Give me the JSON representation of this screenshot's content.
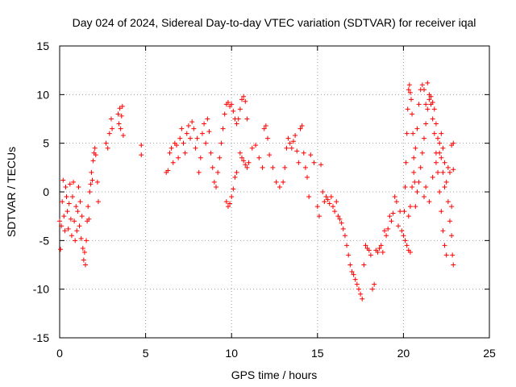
{
  "chart_data": {
    "type": "scatter",
    "title": "Day 024 of 2024, Sidereal Day-to-day VTEC variation (SDTVAR) for receiver iqal",
    "xlabel": "GPS time / hours",
    "ylabel": "SDTVAR / TECUs",
    "xlim": [
      0,
      25
    ],
    "ylim": [
      -15,
      15
    ],
    "x_ticks": [
      0,
      5,
      10,
      15,
      20,
      25
    ],
    "y_ticks": [
      -15,
      -10,
      -5,
      0,
      5,
      10,
      15
    ],
    "x_tick_labels": [
      "0",
      "5",
      "10",
      "15",
      "20",
      "25"
    ],
    "y_tick_labels": [
      "-15",
      "-10",
      "-5",
      "0",
      "5",
      "10",
      "15"
    ],
    "grid": true,
    "marker": "+",
    "color": "#ff0000",
    "series": [
      {
        "name": "SDTVAR",
        "points": [
          [
            0.0,
            -3.0
          ],
          [
            0.05,
            -5.9
          ],
          [
            0.1,
            -3.5
          ],
          [
            0.15,
            -1.0
          ],
          [
            0.2,
            1.2
          ],
          [
            0.25,
            -2.5
          ],
          [
            0.3,
            -4.0
          ],
          [
            0.35,
            0.5
          ],
          [
            0.4,
            -0.5
          ],
          [
            0.45,
            -2.0
          ],
          [
            0.5,
            -3.8
          ],
          [
            0.55,
            -1.2
          ],
          [
            0.6,
            0.8
          ],
          [
            0.65,
            -2.8
          ],
          [
            0.7,
            -4.5
          ],
          [
            0.75,
            -0.5
          ],
          [
            0.8,
            1.0
          ],
          [
            0.85,
            -3.0
          ],
          [
            0.9,
            -5.0
          ],
          [
            0.95,
            -1.5
          ],
          [
            1.0,
            -4.0
          ],
          [
            1.05,
            -2.0
          ],
          [
            1.1,
            0.5
          ],
          [
            1.15,
            -3.5
          ],
          [
            1.2,
            -1.0
          ],
          [
            1.25,
            -4.8
          ],
          [
            1.3,
            -2.5
          ],
          [
            1.35,
            -5.8
          ],
          [
            1.4,
            -7.0
          ],
          [
            1.45,
            -6.2
          ],
          [
            1.5,
            -7.5
          ],
          [
            1.55,
            -5.0
          ],
          [
            1.6,
            -3.0
          ],
          [
            1.65,
            -1.5
          ],
          [
            1.7,
            -2.8
          ],
          [
            1.75,
            0.0
          ],
          [
            1.8,
            0.8
          ],
          [
            1.85,
            2.0
          ],
          [
            1.9,
            1.2
          ],
          [
            1.95,
            3.2
          ],
          [
            2.0,
            4.0
          ],
          [
            2.05,
            4.5
          ],
          [
            2.1,
            3.8
          ],
          [
            2.2,
            1.0
          ],
          [
            2.25,
            -1.0
          ],
          [
            2.7,
            5.0
          ],
          [
            2.8,
            4.5
          ],
          [
            2.9,
            6.0
          ],
          [
            3.0,
            7.5
          ],
          [
            3.05,
            6.5
          ],
          [
            3.4,
            8.0
          ],
          [
            3.45,
            7.0
          ],
          [
            3.5,
            8.6
          ],
          [
            3.55,
            6.5
          ],
          [
            3.6,
            7.8
          ],
          [
            3.65,
            8.8
          ],
          [
            3.7,
            5.8
          ],
          [
            4.75,
            4.8
          ],
          [
            4.75,
            3.8
          ],
          [
            6.2,
            2.0
          ],
          [
            6.3,
            2.2
          ],
          [
            6.4,
            4.0
          ],
          [
            6.5,
            4.5
          ],
          [
            6.6,
            3.0
          ],
          [
            6.7,
            5.0
          ],
          [
            6.8,
            4.8
          ],
          [
            6.9,
            3.5
          ],
          [
            7.0,
            5.5
          ],
          [
            7.1,
            6.5
          ],
          [
            7.2,
            5.0
          ],
          [
            7.3,
            4.0
          ],
          [
            7.4,
            6.0
          ],
          [
            7.5,
            6.8
          ],
          [
            7.6,
            5.5
          ],
          [
            7.7,
            7.2
          ],
          [
            7.8,
            6.5
          ],
          [
            7.9,
            4.5
          ],
          [
            8.0,
            5.5
          ],
          [
            8.1,
            2.0
          ],
          [
            8.2,
            3.5
          ],
          [
            8.3,
            6.0
          ],
          [
            8.4,
            7.0
          ],
          [
            8.5,
            5.0
          ],
          [
            8.6,
            7.5
          ],
          [
            8.7,
            6.2
          ],
          [
            8.8,
            4.0
          ],
          [
            8.9,
            2.5
          ],
          [
            9.0,
            1.0
          ],
          [
            9.1,
            0.5
          ],
          [
            9.2,
            2.0
          ],
          [
            9.3,
            3.5
          ],
          [
            9.4,
            5.0
          ],
          [
            9.5,
            6.5
          ],
          [
            9.6,
            8.0
          ],
          [
            9.7,
            9.0
          ],
          [
            9.8,
            9.2
          ],
          [
            9.9,
            8.8
          ],
          [
            10.0,
            9.0
          ],
          [
            10.1,
            8.3
          ],
          [
            10.2,
            7.5
          ],
          [
            10.3,
            7.0
          ],
          [
            10.4,
            7.5
          ],
          [
            10.5,
            8.5
          ],
          [
            10.6,
            9.5
          ],
          [
            10.7,
            9.8
          ],
          [
            10.8,
            9.3
          ],
          [
            10.9,
            7.5
          ],
          [
            9.7,
            -1.0
          ],
          [
            9.8,
            -1.5
          ],
          [
            9.9,
            -1.2
          ],
          [
            10.0,
            -0.5
          ],
          [
            10.1,
            0.3
          ],
          [
            10.2,
            1.5
          ],
          [
            10.3,
            2.0
          ],
          [
            10.5,
            4.0
          ],
          [
            10.6,
            3.5
          ],
          [
            10.7,
            3.2
          ],
          [
            10.8,
            2.8
          ],
          [
            10.9,
            2.5
          ],
          [
            11.0,
            3.0
          ],
          [
            11.2,
            4.5
          ],
          [
            11.4,
            4.8
          ],
          [
            11.6,
            3.5
          ],
          [
            11.8,
            2.5
          ],
          [
            11.9,
            6.5
          ],
          [
            12.0,
            6.8
          ],
          [
            12.1,
            5.5
          ],
          [
            12.2,
            3.8
          ],
          [
            12.4,
            2.5
          ],
          [
            12.6,
            1.0
          ],
          [
            12.8,
            0.5
          ],
          [
            13.0,
            1.0
          ],
          [
            13.1,
            2.5
          ],
          [
            13.2,
            4.5
          ],
          [
            13.3,
            5.5
          ],
          [
            13.4,
            5.0
          ],
          [
            13.5,
            4.5
          ],
          [
            13.6,
            5.2
          ],
          [
            13.7,
            5.8
          ],
          [
            13.8,
            4.2
          ],
          [
            13.9,
            3.0
          ],
          [
            14.0,
            6.5
          ],
          [
            14.1,
            6.8
          ],
          [
            14.2,
            4.0
          ],
          [
            14.3,
            2.5
          ],
          [
            14.4,
            1.5
          ],
          [
            14.5,
            -0.5
          ],
          [
            14.6,
            3.8
          ],
          [
            14.8,
            3.0
          ],
          [
            15.0,
            -1.5
          ],
          [
            15.1,
            -2.5
          ],
          [
            15.2,
            2.8
          ],
          [
            15.3,
            0.0
          ],
          [
            15.4,
            -1.0
          ],
          [
            15.5,
            -0.5
          ],
          [
            15.6,
            -0.8
          ],
          [
            15.7,
            -1.2
          ],
          [
            15.8,
            -0.5
          ],
          [
            15.9,
            -1.5
          ],
          [
            16.0,
            -2.0
          ],
          [
            16.1,
            -1.0
          ],
          [
            16.2,
            -2.5
          ],
          [
            16.3,
            -2.8
          ],
          [
            16.4,
            -3.2
          ],
          [
            16.5,
            -3.8
          ],
          [
            16.6,
            -4.5
          ],
          [
            16.7,
            -5.5
          ],
          [
            16.8,
            -6.5
          ],
          [
            16.9,
            -7.5
          ],
          [
            17.0,
            -8.2
          ],
          [
            17.1,
            -8.5
          ],
          [
            17.2,
            -9.0
          ],
          [
            17.3,
            -9.5
          ],
          [
            17.4,
            -10.0
          ],
          [
            17.5,
            -10.5
          ],
          [
            17.6,
            -11.0
          ],
          [
            17.7,
            -7.5
          ],
          [
            17.8,
            -5.5
          ],
          [
            17.9,
            -5.8
          ],
          [
            18.0,
            -6.0
          ],
          [
            18.1,
            -6.5
          ],
          [
            18.2,
            -10.0
          ],
          [
            18.3,
            -9.5
          ],
          [
            18.4,
            -6.0
          ],
          [
            18.5,
            -6.2
          ],
          [
            18.6,
            -5.8
          ],
          [
            18.7,
            -5.5
          ],
          [
            18.8,
            -6.2
          ],
          [
            18.9,
            -4.0
          ],
          [
            19.0,
            -4.5
          ],
          [
            19.1,
            -3.8
          ],
          [
            19.2,
            -2.5
          ],
          [
            19.3,
            -3.0
          ],
          [
            19.4,
            -2.2
          ],
          [
            19.5,
            -0.5
          ],
          [
            19.6,
            -1.0
          ],
          [
            19.7,
            -3.5
          ],
          [
            19.8,
            -2.0
          ],
          [
            19.9,
            -4.0
          ],
          [
            20.0,
            -4.5
          ],
          [
            20.1,
            -5.0
          ],
          [
            20.2,
            -5.5
          ],
          [
            20.3,
            -6.0
          ],
          [
            20.4,
            -6.2
          ],
          [
            20.05,
            -2.0
          ],
          [
            20.1,
            0.5
          ],
          [
            20.15,
            3.0
          ],
          [
            20.2,
            6.0
          ],
          [
            20.25,
            8.5
          ],
          [
            20.3,
            10.5
          ],
          [
            20.35,
            11.0
          ],
          [
            20.4,
            10.2
          ],
          [
            20.45,
            9.5
          ],
          [
            20.5,
            8.0
          ],
          [
            20.55,
            6.0
          ],
          [
            20.6,
            3.5
          ],
          [
            20.65,
            1.0
          ],
          [
            20.7,
            -1.5
          ],
          [
            20.3,
            -2.5
          ],
          [
            20.4,
            -1.5
          ],
          [
            20.5,
            0.5
          ],
          [
            20.6,
            2.0
          ],
          [
            20.7,
            4.5
          ],
          [
            20.8,
            6.5
          ],
          [
            20.9,
            9.0
          ],
          [
            21.0,
            10.5
          ],
          [
            21.1,
            11.0
          ],
          [
            21.2,
            10.5
          ],
          [
            21.3,
            9.0
          ],
          [
            21.4,
            11.2
          ],
          [
            21.5,
            10.0
          ],
          [
            21.6,
            9.8
          ],
          [
            21.7,
            9.2
          ],
          [
            21.8,
            8.5
          ],
          [
            21.9,
            7.0
          ],
          [
            22.0,
            5.5
          ],
          [
            22.1,
            4.0
          ],
          [
            22.2,
            3.5
          ],
          [
            22.3,
            2.0
          ],
          [
            22.4,
            0.5
          ],
          [
            20.8,
            0.0
          ],
          [
            20.9,
            1.0
          ],
          [
            21.0,
            2.5
          ],
          [
            21.1,
            4.0
          ],
          [
            21.2,
            5.5
          ],
          [
            21.3,
            7.0
          ],
          [
            21.4,
            8.5
          ],
          [
            21.5,
            9.5
          ],
          [
            21.6,
            9.0
          ],
          [
            21.7,
            7.5
          ],
          [
            21.8,
            6.0
          ],
          [
            21.9,
            4.0
          ],
          [
            22.0,
            2.0
          ],
          [
            22.1,
            0.0
          ],
          [
            22.2,
            -2.0
          ],
          [
            22.3,
            -4.0
          ],
          [
            22.4,
            -5.5
          ],
          [
            22.5,
            -6.5
          ],
          [
            21.2,
            -0.5
          ],
          [
            21.3,
            0.5
          ],
          [
            21.5,
            -1.0
          ],
          [
            21.7,
            1.5
          ],
          [
            21.9,
            3.0
          ],
          [
            22.1,
            5.0
          ],
          [
            22.2,
            6.0
          ],
          [
            22.3,
            4.5
          ],
          [
            22.4,
            3.0
          ],
          [
            22.5,
            1.0
          ],
          [
            22.6,
            -1.0
          ],
          [
            22.7,
            -3.0
          ],
          [
            22.8,
            -4.5
          ],
          [
            22.85,
            -6.5
          ],
          [
            22.9,
            -7.5
          ],
          [
            22.6,
            2.5
          ],
          [
            22.7,
            2.0
          ],
          [
            22.8,
            4.8
          ],
          [
            22.9,
            5.0
          ],
          [
            22.9,
            2.3
          ],
          [
            22.8,
            -1.5
          ]
        ]
      }
    ]
  }
}
